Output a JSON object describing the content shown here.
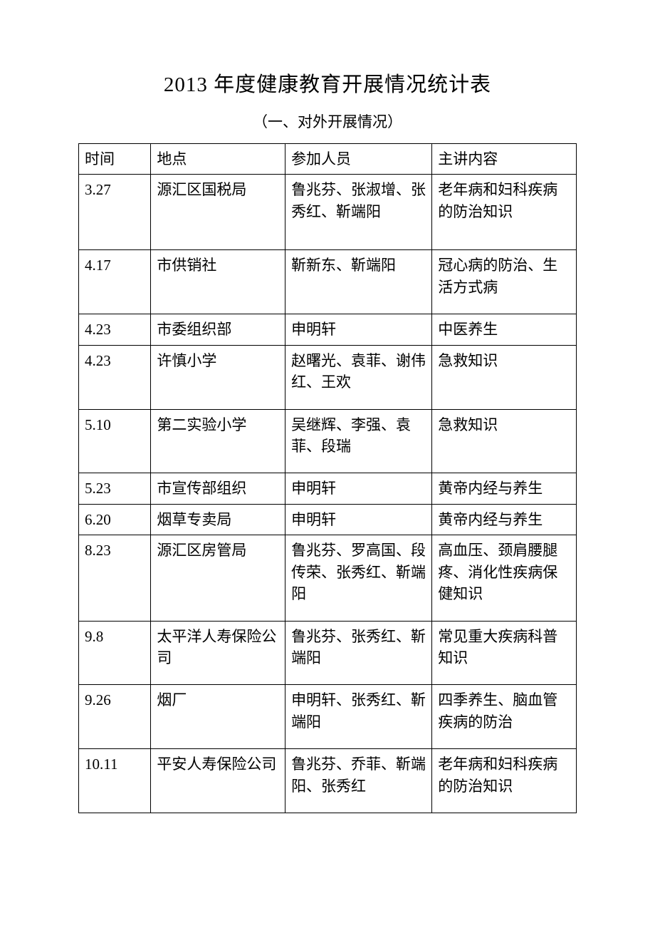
{
  "title": "2013 年度健康教育开展情况统计表",
  "subtitle": "（一、对外开展情况）",
  "table": {
    "columns": [
      "时间",
      "地点",
      "参加人员",
      "主讲内容"
    ],
    "rows": [
      {
        "time": "3.27",
        "place": "源汇区国税局",
        "people": "鲁兆芬、张淑增、张秀红、靳端阳",
        "content": "老年病和妇科疾病的防治知识",
        "pad": "extra"
      },
      {
        "time": "4.17",
        "place": "市供销社",
        "people": "靳新东、靳端阳",
        "content": "冠心病的防治、生活方式病",
        "pad": "small"
      },
      {
        "time": "4.23",
        "place": "市委组织部",
        "people": "申明轩",
        "content": "中医养生",
        "pad": ""
      },
      {
        "time": "4.23",
        "place": "许慎小学",
        "people": "赵曙光、袁菲、谢伟红、王欢",
        "content": "急救知识",
        "pad": "small"
      },
      {
        "time": "5.10",
        "place": "第二实验小学",
        "people": "吴继辉、李强、袁菲、段瑞",
        "content": "急救知识",
        "pad": "small"
      },
      {
        "time": "5.23",
        "place": "市宣传部组织",
        "people": "申明轩",
        "content": "黄帝内经与养生",
        "pad": ""
      },
      {
        "time": "6.20",
        "place": "烟草专卖局",
        "people": "申明轩",
        "content": "黄帝内经与养生",
        "pad": ""
      },
      {
        "time": "8.23",
        "place": "源汇区房管局",
        "people": "鲁兆芬、罗高国、段传荣、张秀红、靳端阳",
        "content": "高血压、颈肩腰腿疼、消化性疾病保健知识",
        "pad": "small"
      },
      {
        "time": "9.8",
        "place": "太平洋人寿保险公司",
        "people": "鲁兆芬、张秀红、靳端阳",
        "content": "常见重大疾病科普知识",
        "pad": "small"
      },
      {
        "time": "9.26",
        "place": "烟厂",
        "people": "申明轩、张秀红、靳端阳",
        "content": "四季养生、脑血管疾病的防治",
        "pad": "small"
      },
      {
        "time": "10.11",
        "place": "平安人寿保险公司",
        "people": "鲁兆芬、乔菲、靳端阳、张秀红",
        "content": "老年病和妇科疾病的防治知识",
        "pad": "small"
      }
    ]
  },
  "colors": {
    "background": "#ffffff",
    "text": "#000000",
    "border": "#000000"
  },
  "typography": {
    "title_fontsize": 29,
    "subtitle_fontsize": 21,
    "body_fontsize": 21,
    "font_family": "SimSun"
  }
}
